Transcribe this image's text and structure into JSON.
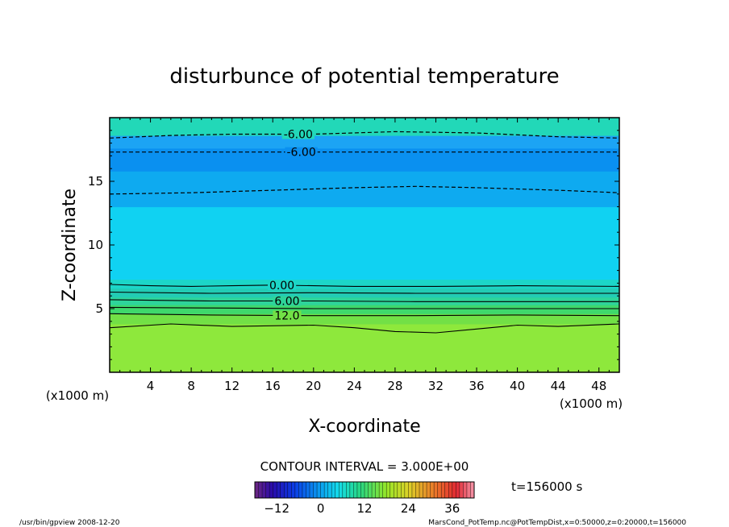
{
  "chart_data": {
    "type": "heatmap",
    "title": "disturbunce of potential temperature",
    "xlabel": "X-coordinate",
    "ylabel": "Z-coordinate",
    "x_unit_left": "(x1000 m)",
    "x_unit_right": "(x1000 m)",
    "x_ticks": [
      4,
      8,
      12,
      16,
      20,
      24,
      28,
      32,
      36,
      40,
      44,
      48
    ],
    "y_ticks": [
      5,
      10,
      15
    ],
    "xlim": [
      0,
      50
    ],
    "ylim": [
      0,
      20
    ],
    "bands": [
      {
        "z0": 0,
        "z1": 3.8,
        "value": 15,
        "color": "#8ee83c"
      },
      {
        "z0": 3.8,
        "z1": 4.6,
        "value": 13,
        "color": "#72e046"
      },
      {
        "z0": 4.6,
        "z1": 5.3,
        "value": 10,
        "color": "#3fd86c"
      },
      {
        "z0": 5.3,
        "z1": 5.9,
        "value": 8,
        "color": "#2ed49a"
      },
      {
        "z0": 5.9,
        "z1": 6.6,
        "value": 4,
        "color": "#22ccb4"
      },
      {
        "z0": 6.6,
        "z1": 7.3,
        "value": 1,
        "color": "#1cd6c8"
      },
      {
        "z0": 7.3,
        "z1": 13.0,
        "value": -3,
        "color": "#10d2f2"
      },
      {
        "z0": 13.0,
        "z1": 15.8,
        "value": -6,
        "color": "#0eaaf0"
      },
      {
        "z0": 15.8,
        "z1": 17.6,
        "value": -8,
        "color": "#0a90f0"
      },
      {
        "z0": 17.6,
        "z1": 18.6,
        "value": -6,
        "color": "#1ca4f4"
      },
      {
        "z0": 18.6,
        "z1": 20.0,
        "value": 2,
        "color": "#22d8b8"
      }
    ],
    "contours": [
      {
        "value": -6.0,
        "dashed": true,
        "points": [
          [
            0,
            18.4
          ],
          [
            6,
            18.6
          ],
          [
            12,
            18.7
          ],
          [
            20,
            18.7
          ],
          [
            28,
            18.9
          ],
          [
            36,
            18.8
          ],
          [
            44,
            18.5
          ],
          [
            50,
            18.4
          ]
        ],
        "label": "-6.00",
        "label_x": 18.5
      },
      {
        "value": -6.0,
        "dashed": true,
        "points": [
          [
            0,
            17.3
          ],
          [
            50,
            17.3
          ]
        ],
        "label": "-6.00",
        "label_x": 18.8
      },
      {
        "value": -6.0,
        "dashed": true,
        "points": [
          [
            0,
            14.0
          ],
          [
            8,
            14.1
          ],
          [
            16,
            14.3
          ],
          [
            24,
            14.5
          ],
          [
            30,
            14.6
          ],
          [
            36,
            14.5
          ],
          [
            44,
            14.3
          ],
          [
            50,
            14.1
          ]
        ],
        "label": "",
        "label_x": 0
      },
      {
        "value": 0.0,
        "dashed": false,
        "points": [
          [
            0,
            6.9
          ],
          [
            4,
            6.8
          ],
          [
            8,
            6.75
          ],
          [
            12,
            6.8
          ],
          [
            16,
            6.85
          ],
          [
            20,
            6.8
          ],
          [
            24,
            6.75
          ],
          [
            32,
            6.75
          ],
          [
            40,
            6.8
          ],
          [
            50,
            6.75
          ]
        ],
        "label": "0.00",
        "label_x": 16.9
      },
      {
        "value": 3.0,
        "dashed": false,
        "points": [
          [
            0,
            6.3
          ],
          [
            10,
            6.2
          ],
          [
            20,
            6.25
          ],
          [
            30,
            6.2
          ],
          [
            40,
            6.2
          ],
          [
            50,
            6.2
          ]
        ],
        "label": "",
        "label_x": 0
      },
      {
        "value": 6.0,
        "dashed": false,
        "points": [
          [
            0,
            5.7
          ],
          [
            10,
            5.6
          ],
          [
            20,
            5.6
          ],
          [
            30,
            5.55
          ],
          [
            40,
            5.55
          ],
          [
            50,
            5.55
          ]
        ],
        "label": "6.00",
        "label_x": 17.4
      },
      {
        "value": 9.0,
        "dashed": false,
        "points": [
          [
            0,
            5.1
          ],
          [
            10,
            5.05
          ],
          [
            20,
            5.0
          ],
          [
            30,
            5.0
          ],
          [
            40,
            5.0
          ],
          [
            50,
            5.0
          ]
        ],
        "label": "",
        "label_x": 0
      },
      {
        "value": 12.0,
        "dashed": false,
        "points": [
          [
            0,
            4.6
          ],
          [
            10,
            4.5
          ],
          [
            20,
            4.45
          ],
          [
            30,
            4.45
          ],
          [
            40,
            4.5
          ],
          [
            50,
            4.45
          ]
        ],
        "label": "12.0",
        "label_x": 17.4
      },
      {
        "value": 15.0,
        "dashed": false,
        "points": [
          [
            0,
            3.5
          ],
          [
            6,
            3.8
          ],
          [
            12,
            3.6
          ],
          [
            20,
            3.7
          ],
          [
            24,
            3.5
          ],
          [
            28,
            3.2
          ],
          [
            32,
            3.1
          ],
          [
            36,
            3.4
          ],
          [
            40,
            3.7
          ],
          [
            44,
            3.6
          ],
          [
            50,
            3.8
          ]
        ],
        "label": "",
        "label_x": 0
      }
    ],
    "contour_interval_label": "CONTOUR INTERVAL = 3.000E+00",
    "time_label": "t=156000 s",
    "colorbar": {
      "min": -18,
      "max": 42,
      "ticks": [
        -12,
        0,
        12,
        24,
        36
      ]
    }
  },
  "footer": {
    "left": "/usr/bin/gpview  2008-12-20",
    "right": "MarsCond_PotTemp.nc@PotTempDist,x=0:50000,z=0:20000,t=156000"
  }
}
